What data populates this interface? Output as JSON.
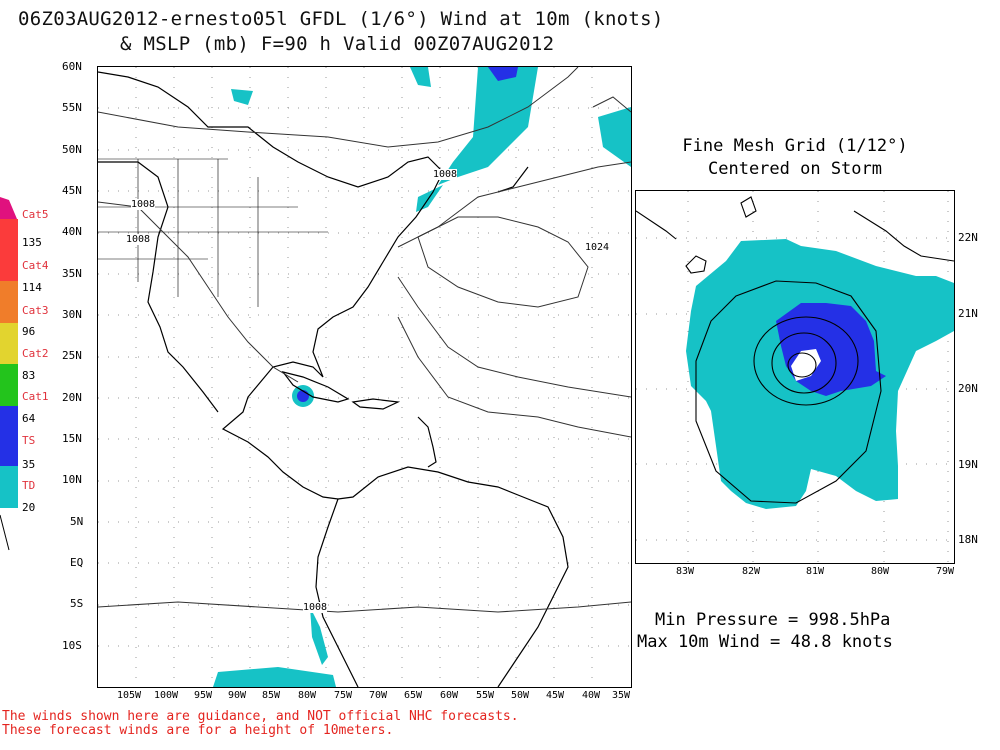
{
  "title": {
    "line1": "06Z03AUG2012-ernesto05l GFDL (1/6°) Wind at 10m (knots)",
    "line2": "& MSLP (mb) F=90 h Valid 00Z07AUG2012"
  },
  "main_map": {
    "lat_labels": [
      "60N",
      "55N",
      "50N",
      "45N",
      "40N",
      "35N",
      "30N",
      "25N",
      "20N",
      "15N",
      "10N",
      "5N",
      "EQ",
      "5S",
      "10S"
    ],
    "lon_labels": [
      "105W",
      "100W",
      "95W",
      "90W",
      "85W",
      "80W",
      "75W",
      "70W",
      "65W",
      "60W",
      "55W",
      "50W",
      "45W",
      "40W",
      "35W"
    ],
    "isobar_labels": [
      "1008",
      "1008",
      "1008",
      "1024",
      "1008"
    ]
  },
  "inset": {
    "title_line1": "Fine Mesh Grid (1/12°)",
    "title_line2": "Centered on Storm",
    "lat_labels": [
      "22N",
      "21N",
      "20N",
      "19N",
      "18N"
    ],
    "lon_labels": [
      "83W",
      "82W",
      "81W",
      "80W",
      "79W"
    ]
  },
  "stats": {
    "min_pressure": "Min Pressure = 998.5hPa",
    "max_wind": "Max 10m Wind = 48.8 knots"
  },
  "legend": {
    "categories": [
      {
        "name": "Cat5",
        "value": "135",
        "color": "#e0117e"
      },
      {
        "name": "Cat4",
        "value": "114",
        "color": "#fb3b3b"
      },
      {
        "name": "Cat3",
        "value": "96",
        "color": "#f07d2a"
      },
      {
        "name": "Cat2",
        "value": "83",
        "color": "#e2d42f"
      },
      {
        "name": "Cat1",
        "value": "64",
        "color": "#23c41c"
      },
      {
        "name": "TS",
        "value": "35",
        "color": "#2430e6"
      },
      {
        "name": "TD",
        "value": "20",
        "color": "#16c2c6"
      }
    ]
  },
  "disclaimer": {
    "line1": "The winds shown here are guidance, and NOT official NHC forecasts.",
    "line2": "These forecast winds are for a height of 10meters."
  }
}
